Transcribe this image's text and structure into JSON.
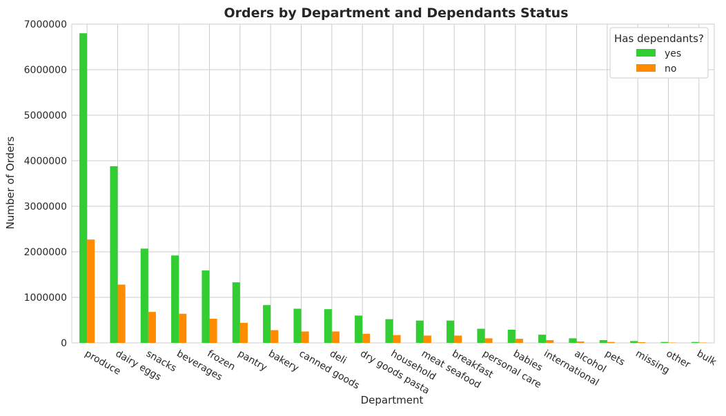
{
  "chart_data": {
    "type": "bar",
    "title": "Orders by Department and Dependants Status",
    "xlabel": "Department",
    "ylabel": "Number of Orders",
    "ylim": [
      0,
      7000000
    ],
    "yticks": [
      0,
      1000000,
      2000000,
      3000000,
      4000000,
      5000000,
      6000000,
      7000000
    ],
    "grid": true,
    "legend": {
      "title": "Has dependants?",
      "position": "top-right"
    },
    "categories": [
      "produce",
      "dairy eggs",
      "snacks",
      "beverages",
      "frozen",
      "pantry",
      "bakery",
      "canned goods",
      "deli",
      "dry goods pasta",
      "household",
      "meat seafood",
      "breakfast",
      "personal care",
      "babies",
      "international",
      "alcohol",
      "pets",
      "missing",
      "other",
      "bulk"
    ],
    "series": [
      {
        "name": "yes",
        "color": "#32cd32",
        "values": [
          6800000,
          3880000,
          2070000,
          1920000,
          1590000,
          1330000,
          830000,
          750000,
          740000,
          600000,
          520000,
          490000,
          490000,
          310000,
          290000,
          180000,
          100000,
          60000,
          40000,
          20000,
          20000
        ]
      },
      {
        "name": "no",
        "color": "#ff8c00",
        "values": [
          2270000,
          1280000,
          680000,
          640000,
          530000,
          440000,
          280000,
          250000,
          250000,
          200000,
          170000,
          160000,
          160000,
          100000,
          90000,
          60000,
          30000,
          20000,
          15000,
          7000,
          7000
        ]
      }
    ]
  }
}
